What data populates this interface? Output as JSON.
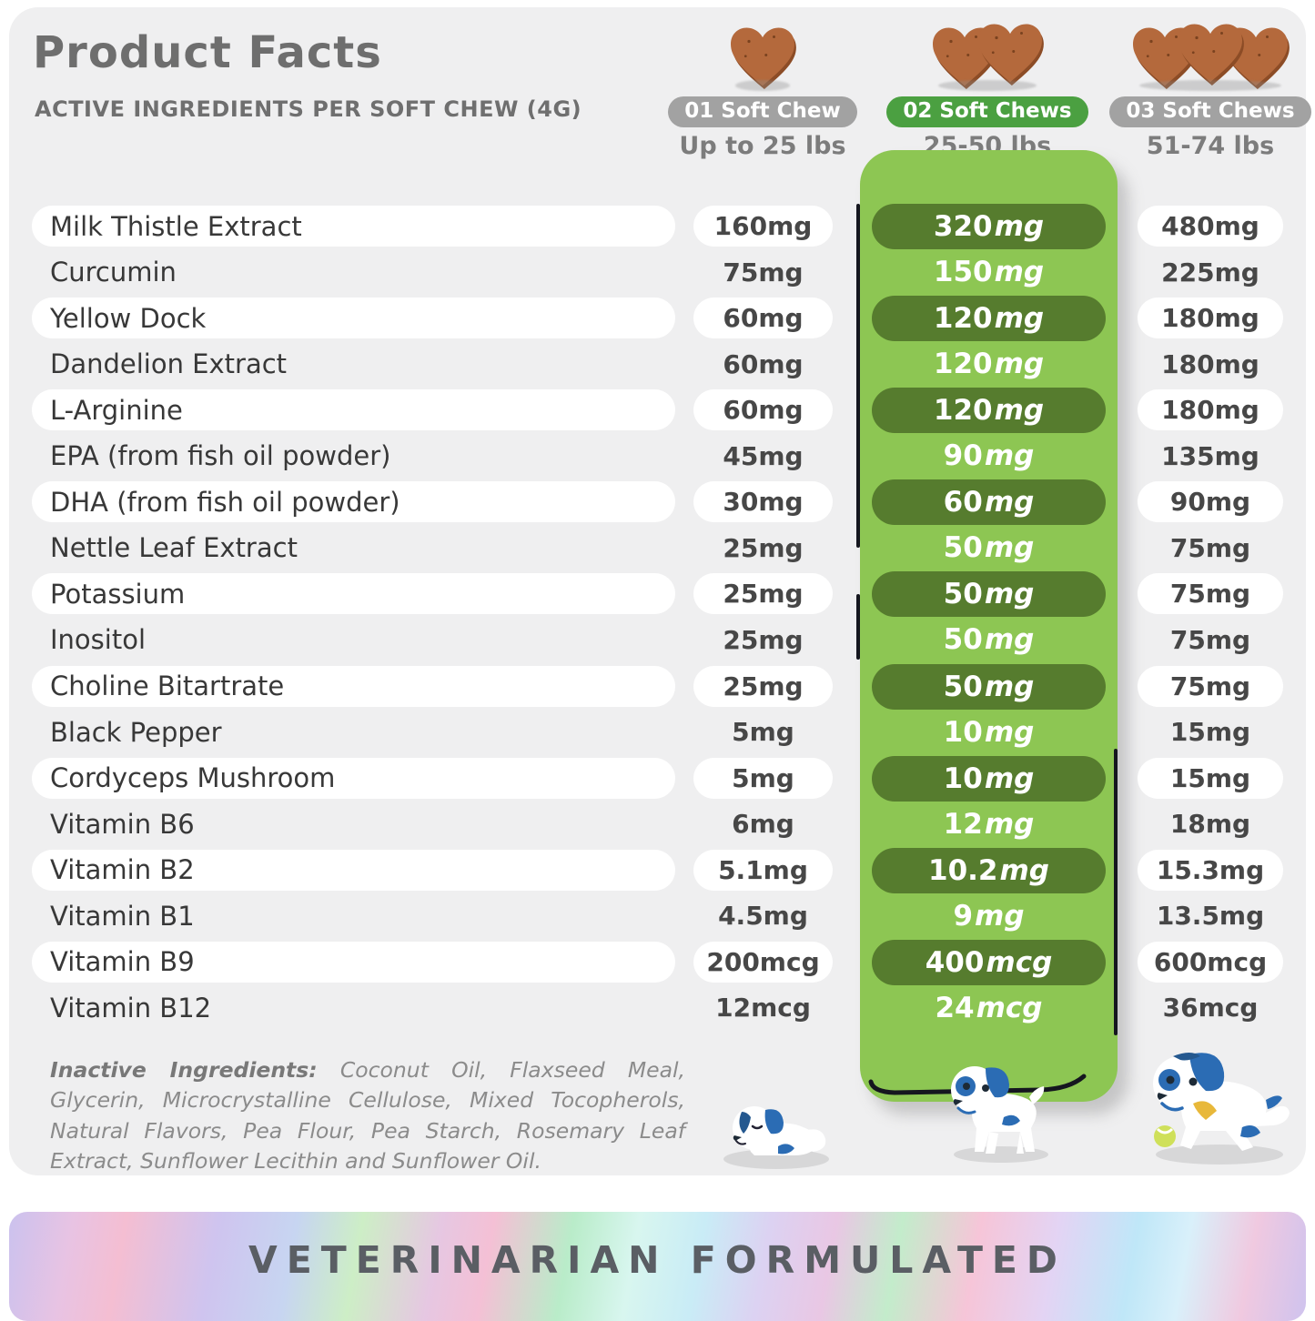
{
  "header": {
    "title": "Product Facts",
    "subtitle": "ACTIVE INGREDIENTS PER SOFT CHEW (4G)"
  },
  "columns": [
    {
      "chews": 1,
      "label": "01 Soft Chew",
      "weight": "Up to 25 lbs",
      "pill_color": "#a2a2a2"
    },
    {
      "chews": 2,
      "label": "02 Soft Chews",
      "weight": "25-50 lbs",
      "pill_color": "#4ba041"
    },
    {
      "chews": 3,
      "label": "03 Soft Chews",
      "weight": "51-74 lbs",
      "pill_color": "#a2a2a2"
    }
  ],
  "rows": [
    {
      "name": "Milk Thistle Extract",
      "dose1": "160mg",
      "dose2_value": "320",
      "dose2_unit": "mg",
      "dose3": "480mg",
      "highlight": true
    },
    {
      "name": "Curcumin",
      "dose1": "75mg",
      "dose2_value": "150",
      "dose2_unit": "mg",
      "dose3": "225mg",
      "highlight": false
    },
    {
      "name": "Yellow Dock",
      "dose1": "60mg",
      "dose2_value": "120",
      "dose2_unit": "mg",
      "dose3": "180mg",
      "highlight": true
    },
    {
      "name": "Dandelion Extract",
      "dose1": "60mg",
      "dose2_value": "120",
      "dose2_unit": "mg",
      "dose3": "180mg",
      "highlight": false
    },
    {
      "name": "L-Arginine",
      "dose1": "60mg",
      "dose2_value": "120",
      "dose2_unit": "mg",
      "dose3": "180mg",
      "highlight": true
    },
    {
      "name": "EPA (from fish oil powder)",
      "dose1": "45mg",
      "dose2_value": "90",
      "dose2_unit": "mg",
      "dose3": "135mg",
      "highlight": false
    },
    {
      "name": "DHA (from fish oil powder)",
      "dose1": "30mg",
      "dose2_value": "60",
      "dose2_unit": "mg",
      "dose3": "90mg",
      "highlight": true
    },
    {
      "name": "Nettle Leaf Extract",
      "dose1": "25mg",
      "dose2_value": "50",
      "dose2_unit": "mg",
      "dose3": "75mg",
      "highlight": false
    },
    {
      "name": "Potassium",
      "dose1": "25mg",
      "dose2_value": "50",
      "dose2_unit": "mg",
      "dose3": "75mg",
      "highlight": true
    },
    {
      "name": "Inositol",
      "dose1": "25mg",
      "dose2_value": "50",
      "dose2_unit": "mg",
      "dose3": "75mg",
      "highlight": false
    },
    {
      "name": "Choline Bitartrate",
      "dose1": "25mg",
      "dose2_value": "50",
      "dose2_unit": "mg",
      "dose3": "75mg",
      "highlight": true
    },
    {
      "name": "Black Pepper",
      "dose1": "5mg",
      "dose2_value": "10",
      "dose2_unit": "mg",
      "dose3": "15mg",
      "highlight": false
    },
    {
      "name": "Cordyceps Mushroom",
      "dose1": "5mg",
      "dose2_value": "10",
      "dose2_unit": "mg",
      "dose3": "15mg",
      "highlight": true
    },
    {
      "name": "Vitamin B6",
      "dose1": "6mg",
      "dose2_value": "12",
      "dose2_unit": "mg",
      "dose3": "18mg",
      "highlight": false
    },
    {
      "name": "Vitamin B2",
      "dose1": "5.1mg",
      "dose2_value": "10.2",
      "dose2_unit": "mg",
      "dose3": "15.3mg",
      "highlight": true
    },
    {
      "name": "Vitamin B1",
      "dose1": "4.5mg",
      "dose2_value": "9",
      "dose2_unit": "mg",
      "dose3": "13.5mg",
      "highlight": false
    },
    {
      "name": "Vitamin B9",
      "dose1": "200mcg",
      "dose2_value": "400",
      "dose2_unit": "mcg",
      "dose3": "600mcg",
      "highlight": true
    },
    {
      "name": "Vitamin B12",
      "dose1": "12mcg",
      "dose2_value": "24",
      "dose2_unit": "mcg",
      "dose3": "36mcg",
      "highlight": false
    }
  ],
  "inactive": {
    "label": "Inactive Ingredients:",
    "text": " Coconut Oil, Flaxseed Meal, Glycerin, Microcrystalline Cellulose, Mixed Tocopherols, Natural Flavors, Pea Flour, Pea Starch, Rosemary Leaf Extract, Sunflower Lecithin and Sunflower Oil."
  },
  "banner": {
    "text": "VETERINARIAN FORMULATED"
  },
  "colors": {
    "card_bg": "#efeff0",
    "band_green": "#8dc653",
    "dark_pill_green": "#567c2e",
    "header_pill_green": "#4ba041",
    "header_pill_gray": "#a2a2a2",
    "chew_brown": "#b4693c",
    "chew_brown_dark": "#8c4c26",
    "text_dark": "#383838",
    "banner_text": "#5a5e64"
  }
}
